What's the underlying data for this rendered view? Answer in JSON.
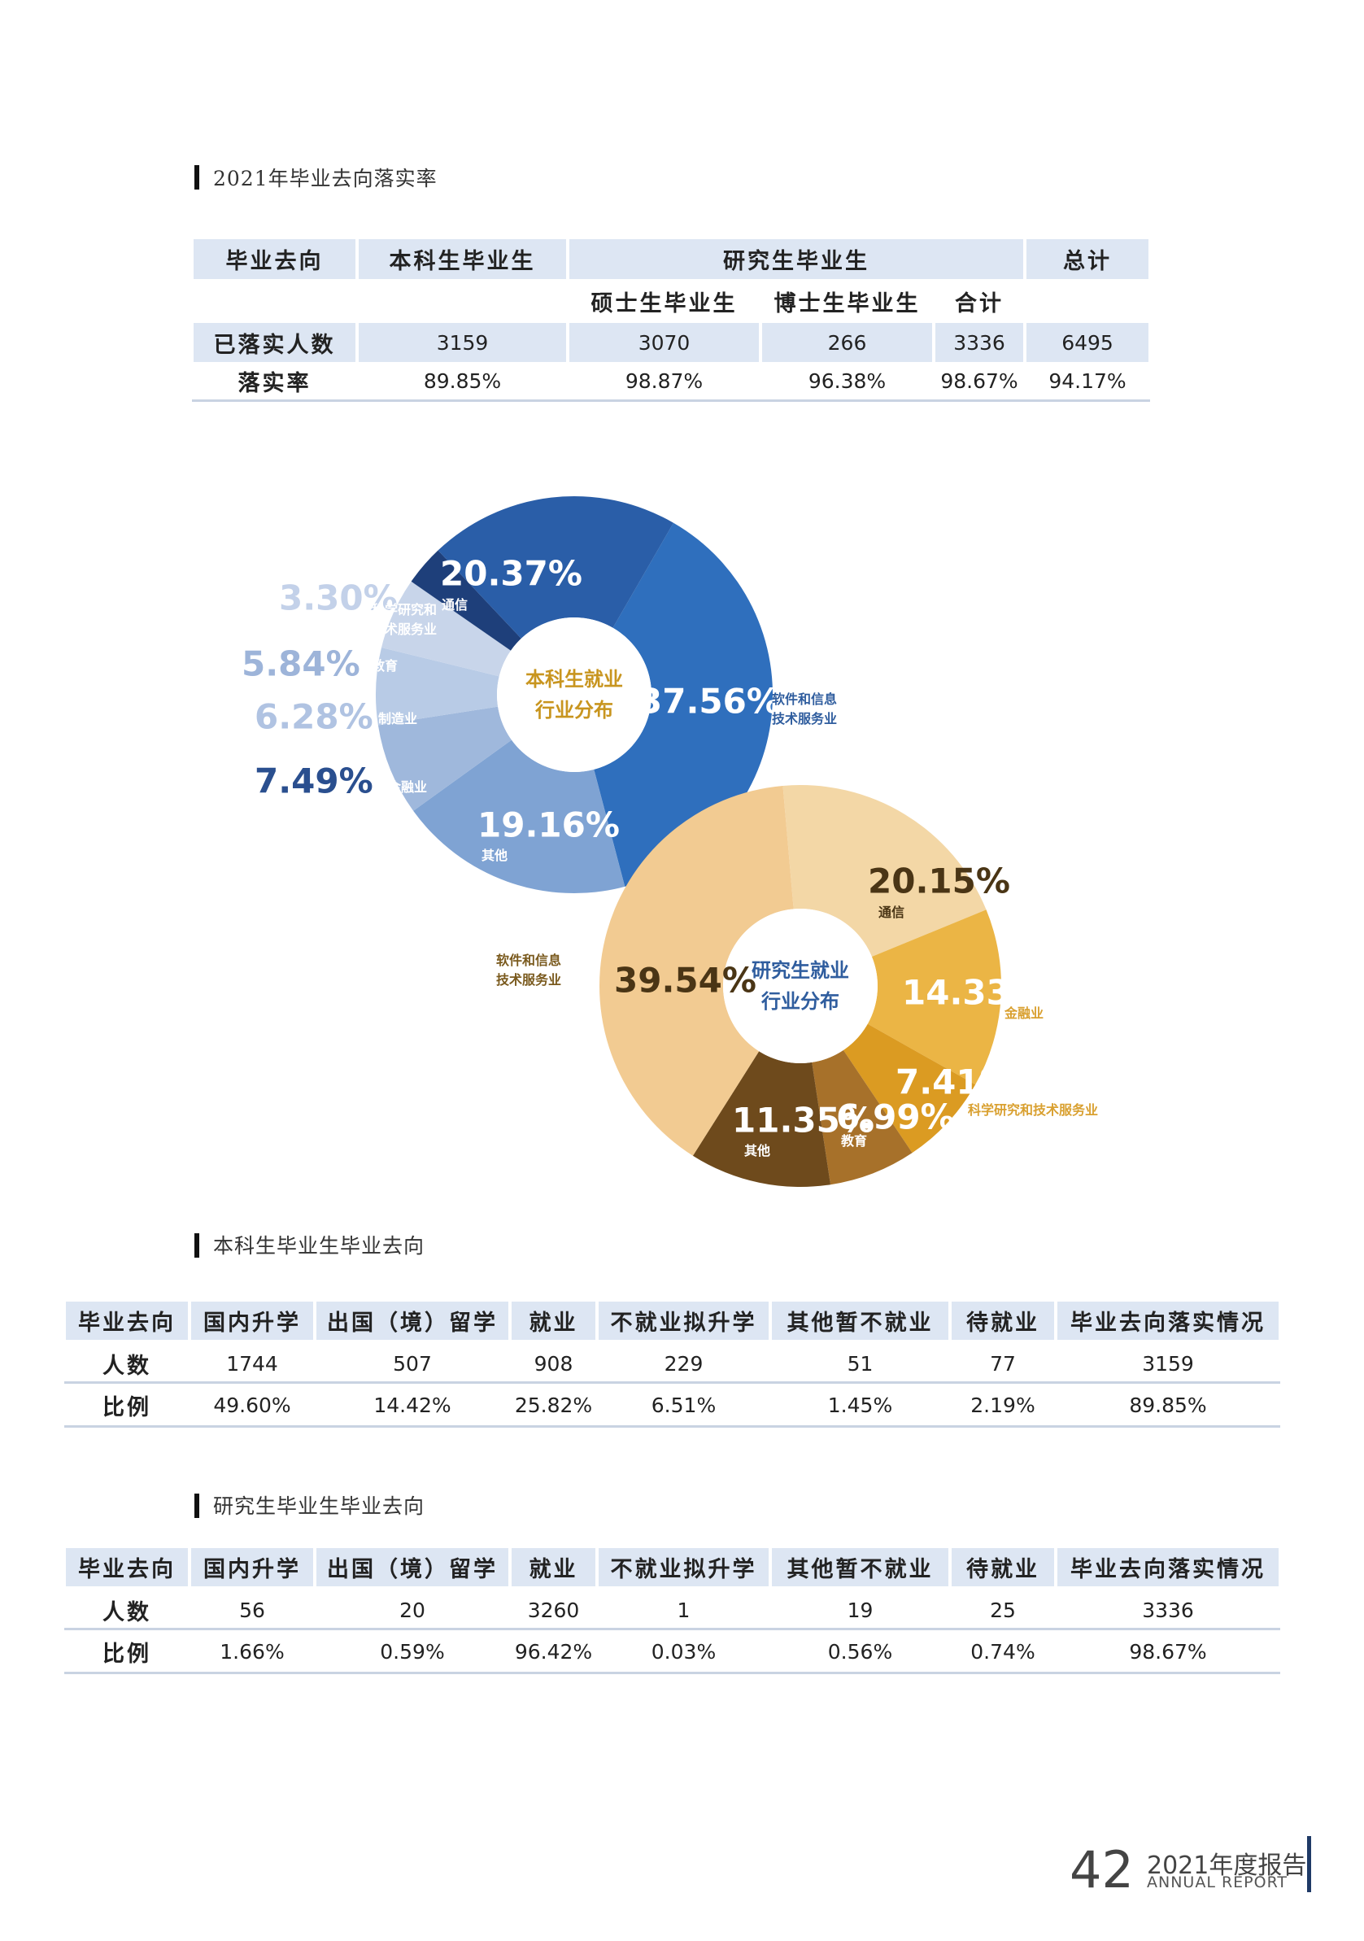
{
  "rate_table": {
    "title": "2021年毕业去向落实率",
    "header": [
      "毕业去向",
      "本科生毕业生",
      "研究生毕业生",
      "总计"
    ],
    "subheader": [
      "硕士生毕业生",
      "博士生毕业生",
      "合计"
    ],
    "rows": [
      [
        "已落实人数",
        "3159",
        "3070",
        "266",
        "3336",
        "6495"
      ],
      [
        "落实率",
        "89.85%",
        "98.87%",
        "96.38%",
        "98.67%",
        "94.17%"
      ]
    ]
  },
  "chart_data": [
    {
      "type": "pie",
      "title": "本科生就业行业分布",
      "categories": [
        "软件和信息技术服务业",
        "其他",
        "金融业",
        "制造业",
        "教育",
        "科学研究和技术服务业",
        "通信"
      ],
      "values": [
        37.56,
        19.16,
        7.49,
        6.28,
        5.84,
        3.3,
        20.37
      ],
      "value_labels": [
        "37.56%",
        "19.16%",
        "7.49%",
        "6.28%",
        "5.84%",
        "3.30%",
        "20.37%"
      ],
      "colors": [
        "#2f6fbd",
        "#7fa3d3",
        "#9fb8dc",
        "#b8cbe6",
        "#c8d5ea",
        "#1e3f7a",
        "#2a5ea8"
      ]
    },
    {
      "type": "pie",
      "title": "研究生就业行业分布",
      "categories": [
        "通信",
        "金融业",
        "科学研究和技术服务业",
        "教育",
        "其他",
        "软件和信息技术服务业"
      ],
      "values": [
        20.15,
        14.33,
        7.41,
        6.99,
        11.35,
        39.54
      ],
      "value_labels": [
        "20.15%",
        "14.33%",
        "7.41%",
        "6.99%",
        "11.35%",
        "39.54%"
      ],
      "colors": [
        "#f3d7a6",
        "#ebb545",
        "#db9b22",
        "#a7712a",
        "#6e4a1c",
        "#f2cb92"
      ]
    }
  ],
  "undergrad_table": {
    "title": "本科生毕业生毕业去向",
    "header": [
      "毕业去向",
      "国内升学",
      "出国（境）留学",
      "就业",
      "不就业拟升学",
      "其他暂不就业",
      "待就业",
      "毕业去向落实情况"
    ],
    "rows": [
      [
        "人数",
        "1744",
        "507",
        "908",
        "229",
        "51",
        "77",
        "3159"
      ],
      [
        "比例",
        "49.60%",
        "14.42%",
        "25.82%",
        "6.51%",
        "1.45%",
        "2.19%",
        "89.85%"
      ]
    ]
  },
  "graduate_table": {
    "title": "研究生毕业生毕业去向",
    "header": [
      "毕业去向",
      "国内升学",
      "出国（境）留学",
      "就业",
      "不就业拟升学",
      "其他暂不就业",
      "待就业",
      "毕业去向落实情况"
    ],
    "rows": [
      [
        "人数",
        "56",
        "20",
        "3260",
        "1",
        "19",
        "25",
        "3336"
      ],
      [
        "比例",
        "1.66%",
        "0.59%",
        "96.42%",
        "0.03%",
        "0.56%",
        "0.74%",
        "98.67%"
      ]
    ]
  },
  "footer": {
    "page": "42",
    "title": "2021年度报告",
    "subtitle": "ANNUAL REPORT"
  }
}
